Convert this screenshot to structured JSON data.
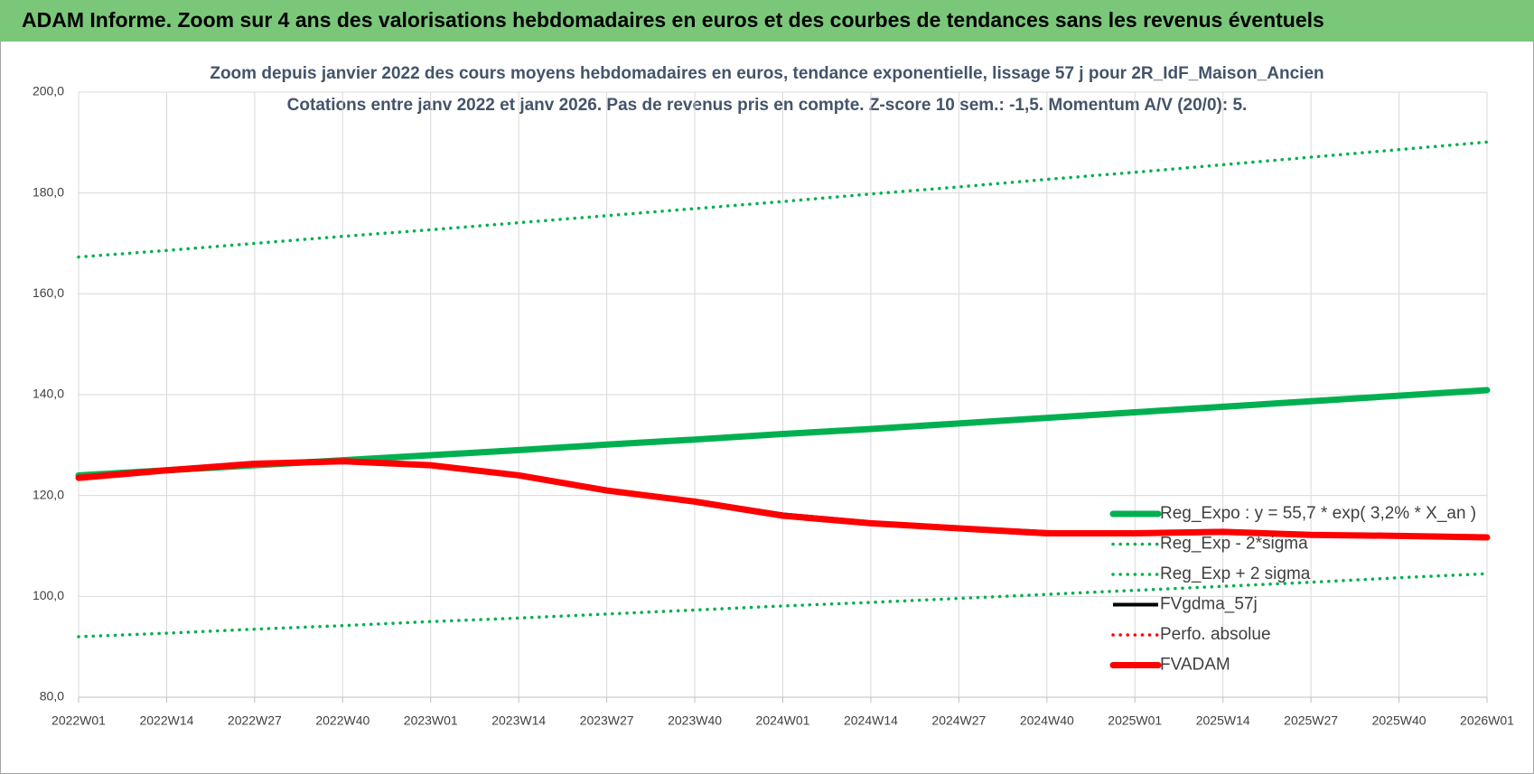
{
  "header": {
    "title": "ADAM Informe. Zoom sur 4 ans des valorisations hebdomadaires en euros et des courbes de tendances sans les revenus éventuels"
  },
  "chart_data": {
    "type": "line",
    "title": "Zoom depuis janvier 2022 des cours moyens hebdomadaires en euros, tendance exponentielle, lissage 57 j pour 2R_IdF_Maison_Ancien",
    "subtitle": "Cotations entre janv 2022 et janv 2026. Pas de revenus pris en compte. Z-score 10 sem.: -1,5. Momentum A/V (20/0): 5.",
    "categories": [
      "2022W01",
      "2022W14",
      "2022W27",
      "2022W40",
      "2023W01",
      "2023W14",
      "2023W27",
      "2023W40",
      "2024W01",
      "2024W14",
      "2024W27",
      "2024W40",
      "2025W01",
      "2025W14",
      "2025W27",
      "2025W40",
      "2026W01"
    ],
    "ylim": [
      80,
      200
    ],
    "yticks": [
      {
        "value": 80,
        "label": "80,0"
      },
      {
        "value": 100,
        "label": "100,0"
      },
      {
        "value": 120,
        "label": "120,0"
      },
      {
        "value": 140,
        "label": "140,0"
      },
      {
        "value": 160,
        "label": "160,0"
      },
      {
        "value": 180,
        "label": "180,0"
      },
      {
        "value": 200,
        "label": "200,0"
      }
    ],
    "grid": true,
    "legend": "lower right",
    "series": [
      {
        "name": "Reg_Expo : y = 55,7 * exp( 3,2% *  X_an )",
        "color": "#00b050",
        "line_style": "thick",
        "values": [
          124.0,
          125.0,
          126.0,
          127.0,
          128.0,
          129.0,
          130.1,
          131.1,
          132.2,
          133.2,
          134.3,
          135.4,
          136.5,
          137.6,
          138.7,
          139.8,
          140.9
        ]
      },
      {
        "name": "Reg_Exp - 2*sigma",
        "color": "#00b050",
        "line_style": "dotted",
        "values": [
          92.0,
          92.7,
          93.5,
          94.2,
          95.0,
          95.7,
          96.5,
          97.3,
          98.1,
          98.8,
          99.6,
          100.4,
          101.2,
          102.0,
          102.8,
          103.7,
          104.5
        ]
      },
      {
        "name": "Reg_Exp + 2 sigma",
        "color": "#00b050",
        "line_style": "dotted",
        "values": [
          167.3,
          168.6,
          170.0,
          171.4,
          172.7,
          174.1,
          175.5,
          176.9,
          178.3,
          179.8,
          181.2,
          182.7,
          184.1,
          185.6,
          187.1,
          188.6,
          190.1
        ]
      },
      {
        "name": "FVgdma_57j",
        "color": "#000000",
        "line_style": "thin",
        "values": [
          123.5,
          125.0,
          126.4,
          126.9,
          126.2,
          124.2,
          121.2,
          119.0,
          116.3,
          114.7,
          113.6,
          112.8,
          112.3,
          112.7,
          112.3,
          112.0,
          111.7
        ]
      },
      {
        "name": "Perfo. absolue",
        "color": "#ff0000",
        "line_style": "dotted",
        "values": [
          123.5,
          125.0,
          126.3,
          126.8,
          126.0,
          124.0,
          121.0,
          118.8,
          116.0,
          114.5,
          113.5,
          112.5,
          112.5,
          112.8,
          112.2,
          112.0,
          111.7
        ]
      },
      {
        "name": "FVADAM",
        "color": "#ff0000",
        "line_style": "thick",
        "values": [
          123.5,
          125.0,
          126.3,
          126.8,
          126.0,
          124.0,
          121.0,
          118.8,
          116.0,
          114.5,
          113.5,
          112.5,
          112.5,
          112.8,
          112.2,
          112.0,
          111.7
        ]
      }
    ]
  }
}
